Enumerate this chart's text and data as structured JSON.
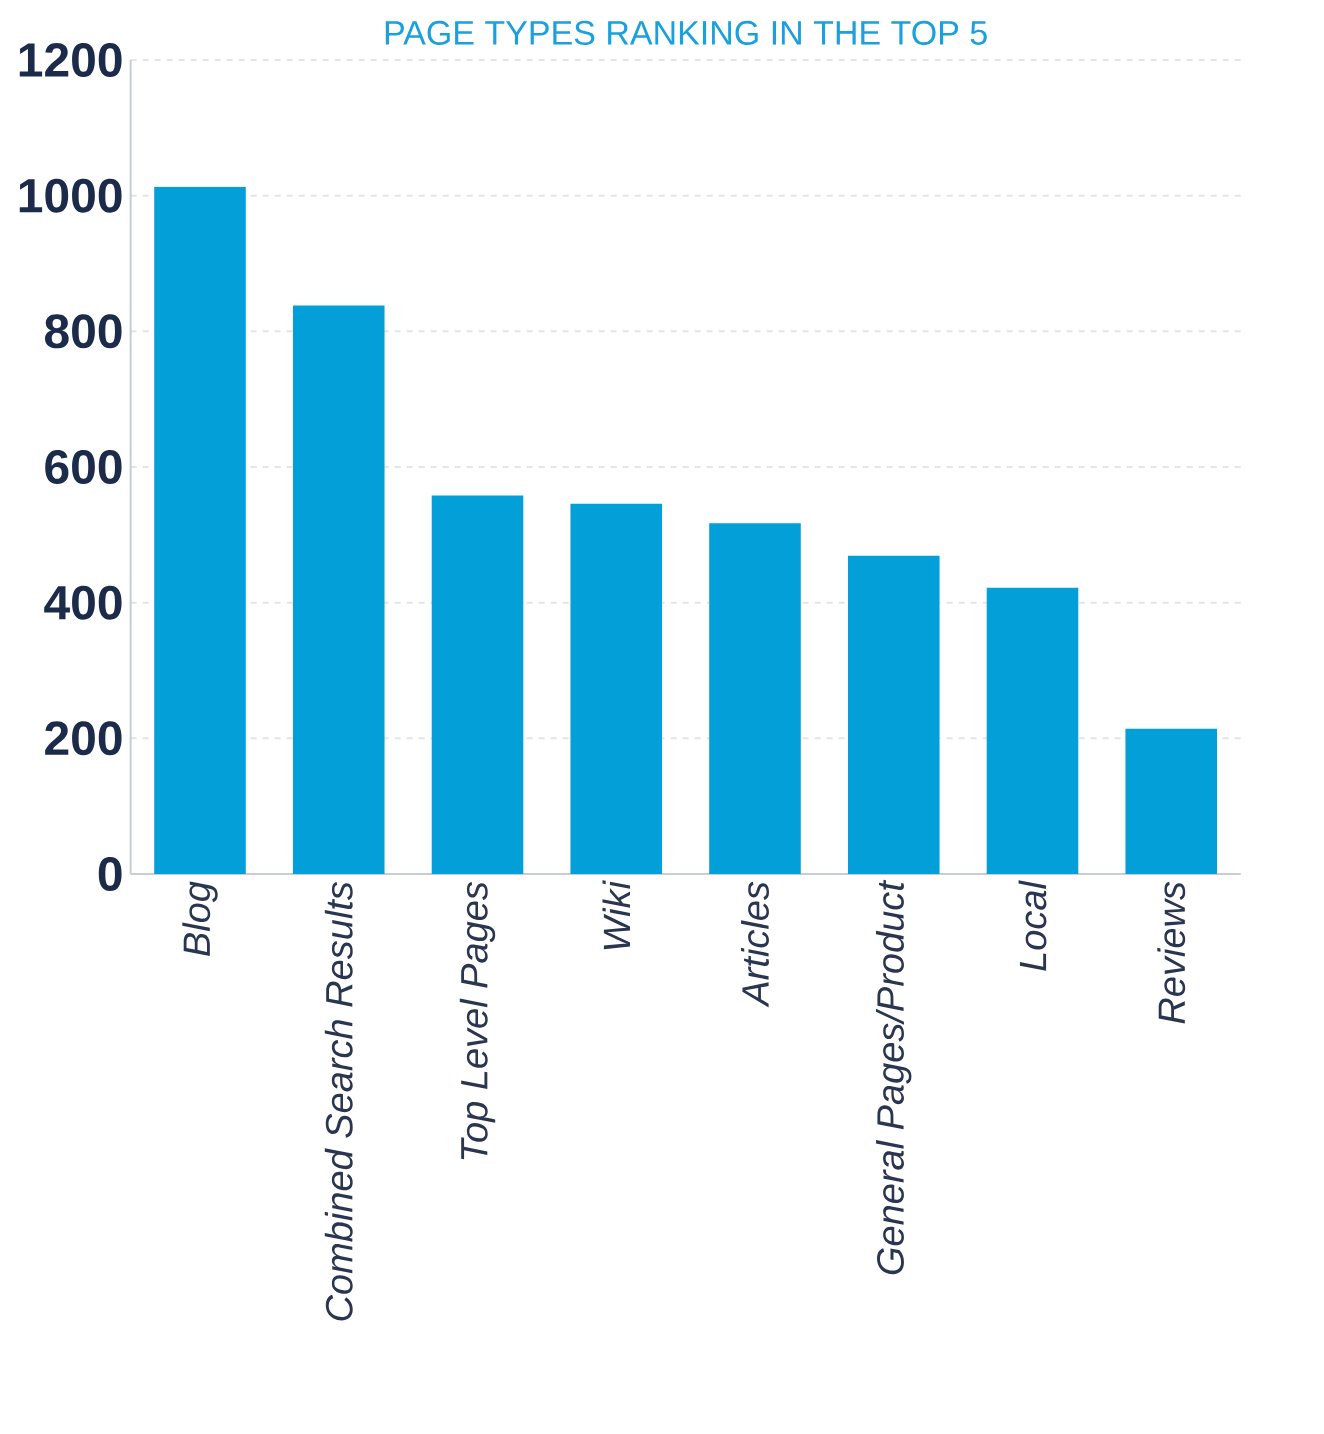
{
  "chart_data": {
    "type": "bar",
    "title": "PAGE TYPES RANKING IN THE TOP 5",
    "categories": [
      "Blog",
      "Combined Search Results",
      "Top Level Pages",
      "Wiki",
      "Articles",
      "General Pages/Product",
      "Local",
      "Reviews"
    ],
    "values": [
      1013,
      838,
      558,
      546,
      517,
      469,
      422,
      214
    ],
    "color": "#039fd9",
    "ylim": [
      0,
      1200
    ],
    "yticks": [
      0,
      200,
      400,
      600,
      800,
      1000,
      1200
    ],
    "grid": "y"
  }
}
